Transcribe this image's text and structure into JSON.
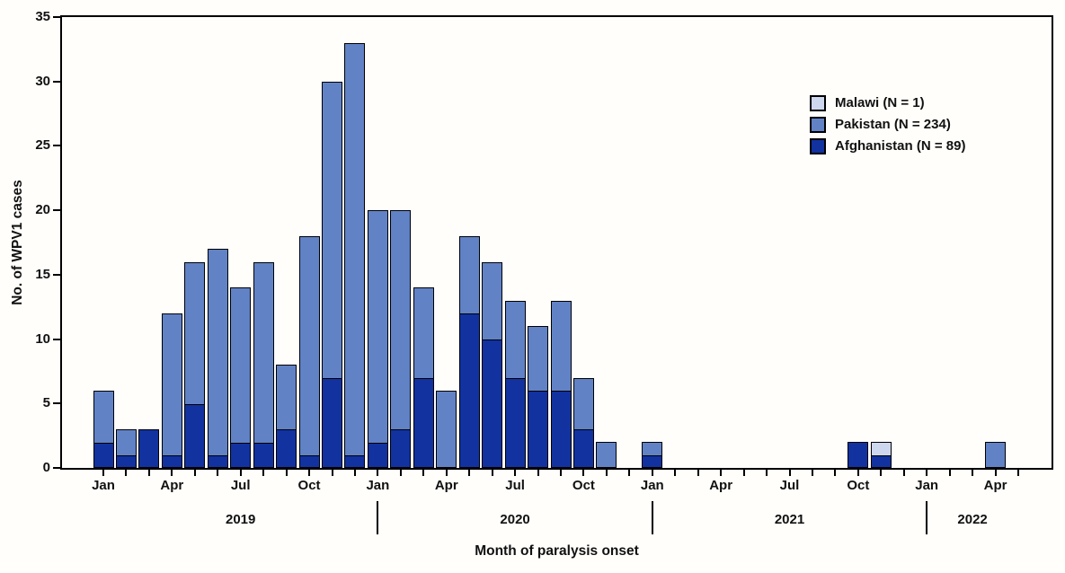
{
  "chart_data": {
    "type": "bar",
    "stacked": true,
    "title": "",
    "xlabel": "Month of paralysis onset",
    "ylabel": "No. of WPV1 cases",
    "ylim": [
      0,
      35
    ],
    "yticks": [
      0,
      5,
      10,
      15,
      20,
      25,
      30,
      35
    ],
    "grid": false,
    "legend_position": "upper right",
    "x_tick_label_every": 3,
    "categories": [
      "Jan 2019",
      "Feb 2019",
      "Mar 2019",
      "Apr 2019",
      "May 2019",
      "Jun 2019",
      "Jul 2019",
      "Aug 2019",
      "Sep 2019",
      "Oct 2019",
      "Nov 2019",
      "Dec 2019",
      "Jan 2020",
      "Feb 2020",
      "Mar 2020",
      "Apr 2020",
      "May 2020",
      "Jun 2020",
      "Jul 2020",
      "Aug 2020",
      "Sep 2020",
      "Oct 2020",
      "Nov 2020",
      "Dec 2020",
      "Jan 2021",
      "Feb 2021",
      "Mar 2021",
      "Apr 2021",
      "May 2021",
      "Jun 2021",
      "Jul 2021",
      "Aug 2021",
      "Sep 2021",
      "Oct 2021",
      "Nov 2021",
      "Dec 2021",
      "Jan 2022",
      "Feb 2022",
      "Mar 2022",
      "Apr 2022",
      "May 2022"
    ],
    "series": [
      {
        "name": "Malawi (N = 1)",
        "color": "#CDD7EE",
        "values": [
          0,
          0,
          0,
          0,
          0,
          0,
          0,
          0,
          0,
          0,
          0,
          0,
          0,
          0,
          0,
          0,
          0,
          0,
          0,
          0,
          0,
          0,
          0,
          0,
          0,
          0,
          0,
          0,
          0,
          0,
          0,
          0,
          0,
          0,
          1,
          0,
          0,
          0,
          0,
          0,
          0
        ]
      },
      {
        "name": "Pakistan (N = 234)",
        "color": "#6282C6",
        "values": [
          4,
          2,
          0,
          11,
          11,
          16,
          12,
          14,
          5,
          17,
          23,
          32,
          18,
          17,
          7,
          6,
          6,
          6,
          6,
          5,
          7,
          4,
          2,
          0,
          1,
          0,
          0,
          0,
          0,
          0,
          0,
          0,
          0,
          0,
          0,
          0,
          0,
          0,
          0,
          2,
          0
        ]
      },
      {
        "name": "Afghanistan (N = 89)",
        "color": "#1232A0",
        "values": [
          2,
          1,
          3,
          1,
          5,
          1,
          2,
          2,
          3,
          1,
          7,
          1,
          2,
          3,
          7,
          0,
          12,
          10,
          7,
          6,
          6,
          3,
          0,
          0,
          1,
          0,
          0,
          0,
          0,
          0,
          0,
          0,
          0,
          2,
          1,
          0,
          0,
          0,
          0,
          0,
          0
        ]
      }
    ],
    "stack_order_bottom_to_top": [
      "Afghanistan (N = 89)",
      "Pakistan (N = 234)",
      "Malawi (N = 1)"
    ],
    "year_labels": [
      {
        "text": "2019",
        "month_index": 6
      },
      {
        "text": "2020",
        "month_index": 18
      },
      {
        "text": "2021",
        "month_index": 30
      },
      {
        "text": "2022",
        "month_index": 38
      }
    ],
    "year_divider_month_indices": [
      12,
      24,
      36
    ]
  }
}
